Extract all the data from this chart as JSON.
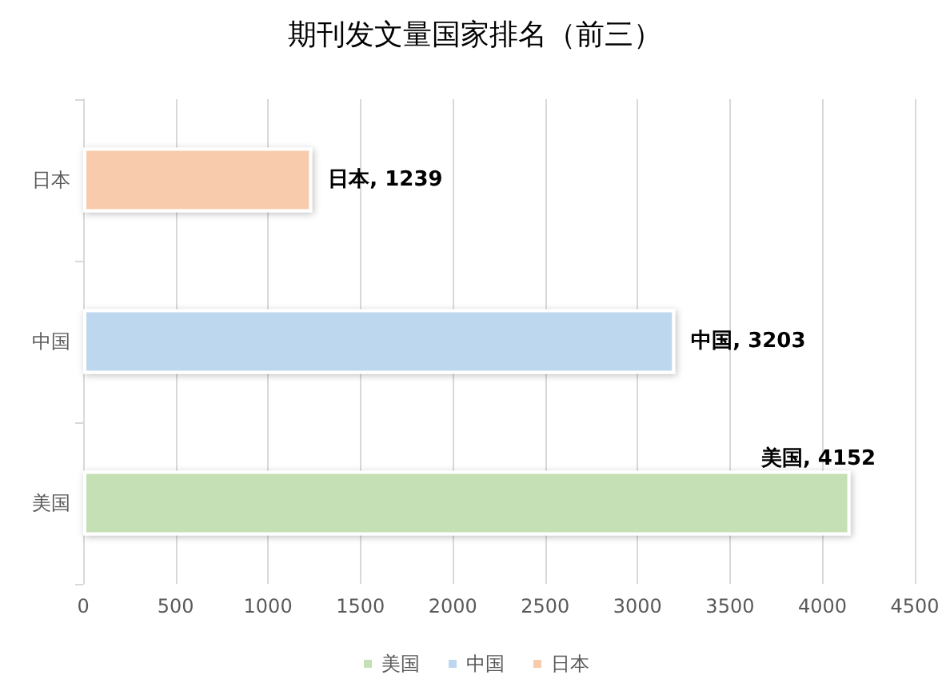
{
  "chart_data": {
    "type": "bar",
    "title": "期刊发文量国家排名（前三）",
    "orientation": "horizontal",
    "stacked": true,
    "categories": [
      "日本",
      "中国",
      "美国"
    ],
    "series": [
      {
        "name": "美国",
        "color": "#c5e0b4",
        "values": [
          null,
          null,
          4152
        ],
        "value_labels": [
          null,
          null,
          "美国, 4152"
        ]
      },
      {
        "name": "中国",
        "color": "#bdd7ee",
        "values": [
          null,
          3203,
          null
        ],
        "value_labels": [
          null,
          "中国, 3203",
          null
        ]
      },
      {
        "name": "日本",
        "color": "#f8cbad",
        "values": [
          1239,
          null,
          null
        ],
        "value_labels": [
          "日本, 1239",
          null,
          null
        ]
      }
    ],
    "xlim": [
      0,
      4500
    ],
    "xticks": [
      0,
      500,
      1000,
      1500,
      2000,
      2500,
      3000,
      3500,
      4000,
      4500
    ],
    "grid": "x",
    "legend": "bottom"
  }
}
